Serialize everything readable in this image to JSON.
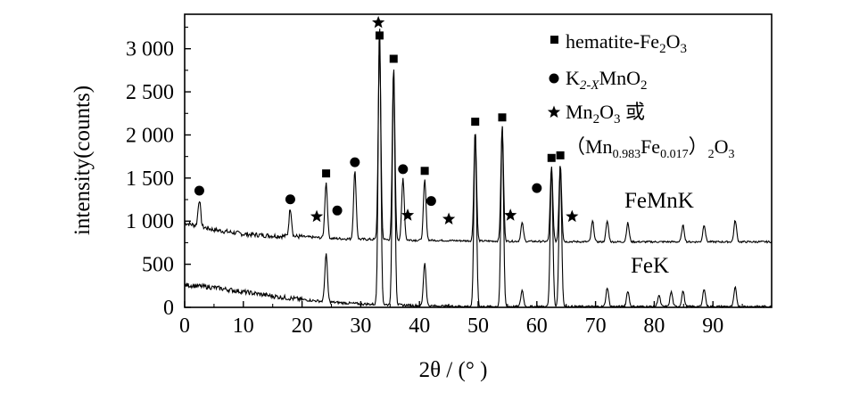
{
  "chart_data": {
    "type": "line",
    "xlabel": "2θ / (°  )",
    "ylabel": "intensity(counts)",
    "xlim": [
      0,
      100
    ],
    "ylim": [
      0,
      3400
    ],
    "x_ticks": [
      0,
      10,
      20,
      30,
      40,
      50,
      60,
      70,
      80,
      90
    ],
    "x_tick_labels": [
      "0",
      "10",
      "20",
      "30",
      "40",
      "50",
      "60",
      "70",
      "80",
      "90"
    ],
    "y_ticks": [
      0,
      500,
      1000,
      1500,
      2000,
      2500,
      3000
    ],
    "y_tick_labels": [
      "0",
      "500",
      "1 000",
      "1 500",
      "2 000",
      "2 500",
      "3 000"
    ],
    "grid": false,
    "legend_position": "top-right",
    "legend": [
      {
        "marker": "square",
        "text": "hematite-Fe",
        "sub": "2",
        "text2": "O",
        "sub2": "3"
      },
      {
        "marker": "circle",
        "text": "K",
        "sub": "2-X",
        "text2": "MnO",
        "sub2": "2"
      },
      {
        "marker": "star",
        "text": "Mn",
        "sub": "2",
        "text2": "O",
        "sub2": "3",
        "text3": " 或"
      },
      {
        "marker": "none",
        "line2_a": "（Mn",
        "line2_sub1": "0.983",
        "line2_b": "Fe",
        "line2_sub2": "0.017",
        "line2_c": "）",
        "line2_sub3": "2",
        "line2_d": "O",
        "line2_sub4": "3"
      }
    ],
    "series": [
      {
        "name": "FeMnK",
        "baseline": [
          [
            0,
            980
          ],
          [
            5,
            900
          ],
          [
            10,
            850
          ],
          [
            15,
            830
          ],
          [
            20,
            820
          ],
          [
            25,
            800
          ],
          [
            30,
            790
          ],
          [
            40,
            780
          ],
          [
            50,
            770
          ],
          [
            60,
            765
          ],
          [
            70,
            760
          ],
          [
            80,
            760
          ],
          [
            90,
            760
          ],
          [
            100,
            760
          ]
        ],
        "peaks": [
          {
            "x": 2.5,
            "y": 1250,
            "marker": "circle"
          },
          {
            "x": 18,
            "y": 1150,
            "marker": "circle"
          },
          {
            "x": 24.1,
            "y": 1450,
            "marker": "square"
          },
          {
            "x": 29,
            "y": 1580,
            "marker": "circle"
          },
          {
            "x": 33.2,
            "y": 3050,
            "marker": "square"
          },
          {
            "x": 35.6,
            "y": 2780,
            "marker": "square"
          },
          {
            "x": 37.2,
            "y": 1500,
            "marker": "circle"
          },
          {
            "x": 40.9,
            "y": 1480,
            "marker": "square"
          },
          {
            "x": 49.5,
            "y": 2050,
            "marker": "square"
          },
          {
            "x": 54.1,
            "y": 2100,
            "marker": "square"
          },
          {
            "x": 57.5,
            "y": 980
          },
          {
            "x": 62.5,
            "y": 1630,
            "marker": "square"
          },
          {
            "x": 64,
            "y": 1660,
            "marker": "square"
          },
          {
            "x": 69.5,
            "y": 1000
          },
          {
            "x": 72,
            "y": 1000
          },
          {
            "x": 75.5,
            "y": 980
          },
          {
            "x": 84.9,
            "y": 950
          },
          {
            "x": 88.5,
            "y": 960
          },
          {
            "x": 93.8,
            "y": 1010
          }
        ],
        "markers_extra": [
          {
            "x": 26,
            "y": 1020,
            "marker": "circle"
          },
          {
            "x": 42,
            "y": 1130,
            "marker": "circle"
          },
          {
            "x": 60,
            "y": 1280,
            "marker": "circle"
          },
          {
            "x": 22.5,
            "y": 950,
            "marker": "star"
          },
          {
            "x": 33.0,
            "y": 3200,
            "marker": "star"
          },
          {
            "x": 38.0,
            "y": 965,
            "marker": "star"
          },
          {
            "x": 45.0,
            "y": 920,
            "marker": "star"
          },
          {
            "x": 55.5,
            "y": 965,
            "marker": "star"
          },
          {
            "x": 66.0,
            "y": 950,
            "marker": "star"
          }
        ]
      },
      {
        "name": "FeK",
        "baseline": [
          [
            0,
            260
          ],
          [
            5,
            230
          ],
          [
            10,
            180
          ],
          [
            15,
            130
          ],
          [
            20,
            90
          ],
          [
            25,
            60
          ],
          [
            30,
            40
          ],
          [
            40,
            20
          ],
          [
            50,
            10
          ],
          [
            60,
            10
          ],
          [
            70,
            10
          ],
          [
            80,
            10
          ],
          [
            90,
            10
          ],
          [
            100,
            10
          ]
        ],
        "peaks": [
          {
            "x": 24.1,
            "y": 620
          },
          {
            "x": 33.2,
            "y": 3300
          },
          {
            "x": 35.6,
            "y": 2780
          },
          {
            "x": 40.9,
            "y": 520
          },
          {
            "x": 49.5,
            "y": 2050
          },
          {
            "x": 54.1,
            "y": 2100
          },
          {
            "x": 57.5,
            "y": 200
          },
          {
            "x": 62.5,
            "y": 1630
          },
          {
            "x": 64,
            "y": 1660
          },
          {
            "x": 72,
            "y": 230
          },
          {
            "x": 75.5,
            "y": 190
          },
          {
            "x": 80.8,
            "y": 140
          },
          {
            "x": 82.9,
            "y": 180
          },
          {
            "x": 84.9,
            "y": 190
          },
          {
            "x": 88.5,
            "y": 220
          },
          {
            "x": 93.8,
            "y": 230
          }
        ]
      }
    ]
  }
}
